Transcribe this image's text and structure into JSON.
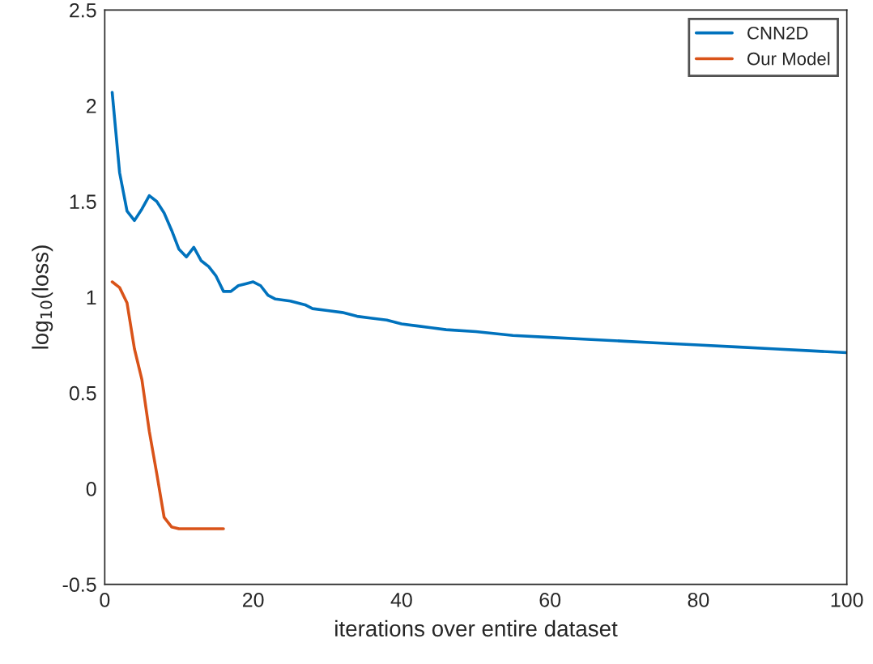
{
  "chart_data": {
    "type": "line",
    "xlabel": "iterations over entire dataset",
    "ylabel": "log$_{10}$(loss)",
    "xlim": [
      0,
      100
    ],
    "xticks": [
      0,
      20,
      40,
      60,
      80,
      100
    ],
    "ylim": [
      -0.5,
      2.5
    ],
    "yticks": [
      -0.5,
      0,
      0.5,
      1,
      1.5,
      2,
      2.5
    ],
    "grid": false,
    "legend": "top right",
    "marker": "none",
    "line_style": "solid",
    "series": [
      {
        "name": "CNN2D",
        "color": "#0072bd",
        "x": [
          1,
          2,
          3,
          4,
          5,
          6,
          7,
          8,
          9,
          10,
          11,
          12,
          13,
          14,
          15,
          16,
          17,
          18,
          19,
          20,
          21,
          22,
          23,
          25,
          27,
          28,
          30,
          32,
          34,
          36,
          38,
          40,
          42,
          44,
          46,
          50,
          55,
          60,
          65,
          70,
          75,
          80,
          85,
          90,
          95,
          100
        ],
        "values": [
          2.07,
          1.65,
          1.45,
          1.4,
          1.46,
          1.53,
          1.5,
          1.44,
          1.35,
          1.25,
          1.21,
          1.26,
          1.19,
          1.16,
          1.11,
          1.03,
          1.03,
          1.06,
          1.07,
          1.08,
          1.06,
          1.01,
          0.99,
          0.98,
          0.96,
          0.94,
          0.93,
          0.92,
          0.9,
          0.89,
          0.88,
          0.86,
          0.85,
          0.84,
          0.83,
          0.82,
          0.8,
          0.79,
          0.78,
          0.77,
          0.76,
          0.75,
          0.74,
          0.73,
          0.72,
          0.71
        ]
      },
      {
        "name": "Our Model",
        "color": "#d95319",
        "x": [
          1,
          2,
          3,
          4,
          5,
          6,
          7,
          8,
          9,
          10,
          16
        ],
        "values": [
          1.08,
          1.05,
          0.97,
          0.73,
          0.57,
          0.3,
          0.08,
          -0.15,
          -0.2,
          -0.21,
          -0.21
        ]
      }
    ]
  }
}
